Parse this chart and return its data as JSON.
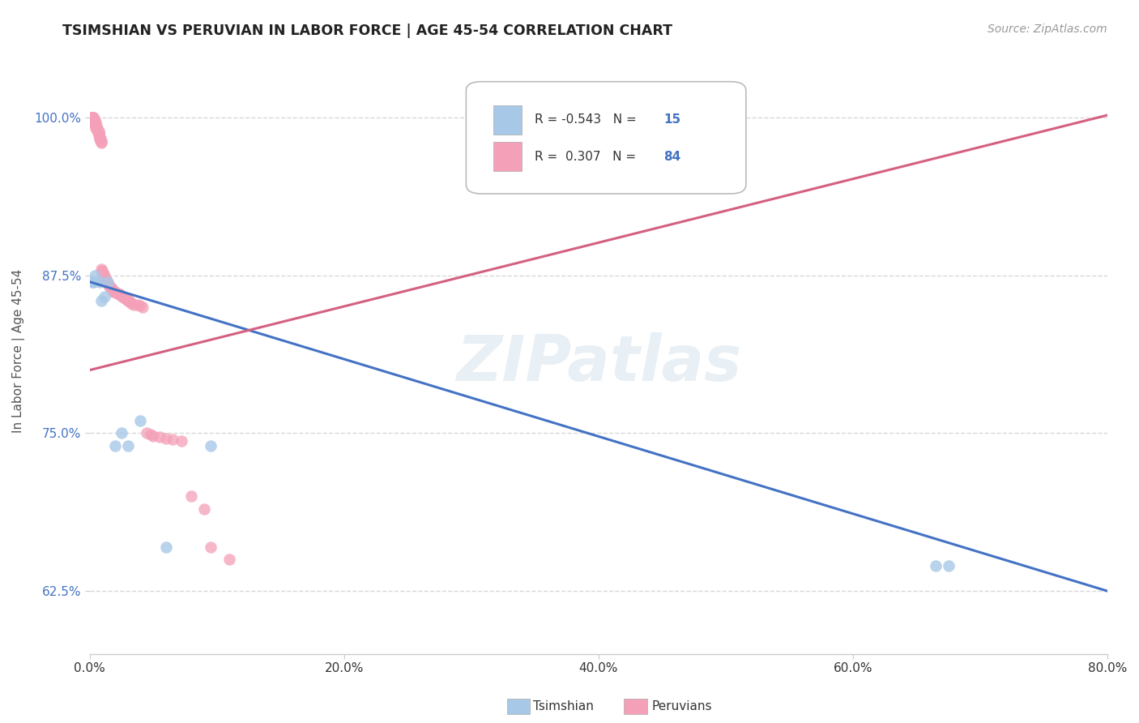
{
  "title": "TSIMSHIAN VS PERUVIAN IN LABOR FORCE | AGE 45-54 CORRELATION CHART",
  "source": "Source: ZipAtlas.com",
  "ylabel_label": "In Labor Force | Age 45-54",
  "xlim": [
    0.0,
    0.8
  ],
  "ylim": [
    0.575,
    1.055
  ],
  "yticks": [
    0.625,
    0.75,
    0.875,
    1.0
  ],
  "xticks": [
    0.0,
    0.2,
    0.4,
    0.6,
    0.8
  ],
  "tsimshian_color": "#a8c8e8",
  "peruvian_color": "#f4a0b8",
  "tsimshian_line_color": "#4472c4",
  "peruvian_line_color": "#d46080",
  "background_color": "#ffffff",
  "grid_color": "#d8d8d8",
  "tsimshian_scatter": [
    [
      0.002,
      0.87
    ],
    [
      0.003,
      0.87
    ],
    [
      0.004,
      0.875
    ],
    [
      0.008,
      0.87
    ],
    [
      0.009,
      0.855
    ],
    [
      0.012,
      0.858
    ],
    [
      0.014,
      0.87
    ],
    [
      0.02,
      0.74
    ],
    [
      0.025,
      0.75
    ],
    [
      0.03,
      0.74
    ],
    [
      0.04,
      0.76
    ],
    [
      0.06,
      0.66
    ],
    [
      0.095,
      0.74
    ],
    [
      0.665,
      0.645
    ],
    [
      0.675,
      0.645
    ]
  ],
  "peruvian_scatter": [
    [
      0.001,
      1.0
    ],
    [
      0.001,
      1.0
    ],
    [
      0.002,
      1.0
    ],
    [
      0.002,
      1.0
    ],
    [
      0.002,
      1.0
    ],
    [
      0.002,
      1.0
    ],
    [
      0.003,
      1.0
    ],
    [
      0.003,
      1.0
    ],
    [
      0.003,
      1.0
    ],
    [
      0.003,
      0.998
    ],
    [
      0.003,
      0.998
    ],
    [
      0.004,
      0.998
    ],
    [
      0.004,
      0.997
    ],
    [
      0.004,
      0.996
    ],
    [
      0.004,
      0.996
    ],
    [
      0.005,
      0.996
    ],
    [
      0.005,
      0.995
    ],
    [
      0.005,
      0.994
    ],
    [
      0.005,
      0.993
    ],
    [
      0.005,
      0.992
    ],
    [
      0.006,
      0.992
    ],
    [
      0.006,
      0.991
    ],
    [
      0.006,
      0.99
    ],
    [
      0.006,
      0.99
    ],
    [
      0.007,
      0.989
    ],
    [
      0.007,
      0.988
    ],
    [
      0.007,
      0.988
    ],
    [
      0.007,
      0.987
    ],
    [
      0.007,
      0.986
    ],
    [
      0.008,
      0.985
    ],
    [
      0.008,
      0.984
    ],
    [
      0.008,
      0.983
    ],
    [
      0.009,
      0.982
    ],
    [
      0.009,
      0.981
    ],
    [
      0.009,
      0.98
    ],
    [
      0.009,
      0.88
    ],
    [
      0.01,
      0.879
    ],
    [
      0.01,
      0.878
    ],
    [
      0.01,
      0.877
    ],
    [
      0.011,
      0.876
    ],
    [
      0.011,
      0.875
    ],
    [
      0.011,
      0.875
    ],
    [
      0.012,
      0.874
    ],
    [
      0.012,
      0.873
    ],
    [
      0.012,
      0.872
    ],
    [
      0.013,
      0.872
    ],
    [
      0.013,
      0.871
    ],
    [
      0.013,
      0.87
    ],
    [
      0.014,
      0.869
    ],
    [
      0.015,
      0.868
    ],
    [
      0.015,
      0.867
    ],
    [
      0.016,
      0.866
    ],
    [
      0.016,
      0.866
    ],
    [
      0.017,
      0.865
    ],
    [
      0.018,
      0.864
    ],
    [
      0.018,
      0.863
    ],
    [
      0.019,
      0.862
    ],
    [
      0.02,
      0.862
    ],
    [
      0.022,
      0.861
    ],
    [
      0.023,
      0.86
    ],
    [
      0.024,
      0.86
    ],
    [
      0.025,
      0.859
    ],
    [
      0.026,
      0.858
    ],
    [
      0.028,
      0.857
    ],
    [
      0.029,
      0.856
    ],
    [
      0.03,
      0.855
    ],
    [
      0.031,
      0.855
    ],
    [
      0.032,
      0.854
    ],
    [
      0.033,
      0.853
    ],
    [
      0.035,
      0.852
    ],
    [
      0.038,
      0.852
    ],
    [
      0.04,
      0.851
    ],
    [
      0.042,
      0.85
    ],
    [
      0.045,
      0.75
    ],
    [
      0.048,
      0.749
    ],
    [
      0.05,
      0.748
    ],
    [
      0.055,
      0.747
    ],
    [
      0.06,
      0.746
    ],
    [
      0.065,
      0.745
    ],
    [
      0.072,
      0.744
    ],
    [
      0.08,
      0.7
    ],
    [
      0.09,
      0.69
    ],
    [
      0.095,
      0.66
    ],
    [
      0.11,
      0.65
    ]
  ],
  "tsim_line_x0": 0.0,
  "tsim_line_y0": 0.87,
  "tsim_line_x1": 0.8,
  "tsim_line_y1": 0.625,
  "peru_line_x0": 0.0,
  "peru_line_y0": 0.8,
  "peru_line_x1": 0.8,
  "peru_line_y1": 1.002
}
